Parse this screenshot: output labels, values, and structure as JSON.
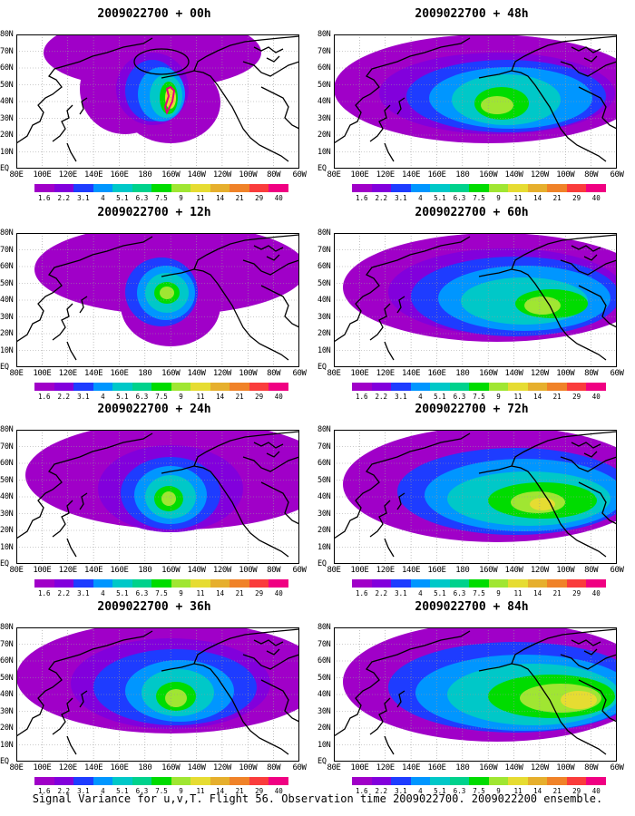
{
  "panels": [
    {
      "title": "2009022700 + 00h"
    },
    {
      "title": "2009022700 + 48h"
    },
    {
      "title": "2009022700 + 12h"
    },
    {
      "title": "2009022700 + 60h"
    },
    {
      "title": "2009022700 + 24h"
    },
    {
      "title": "2009022700 + 72h"
    },
    {
      "title": "2009022700 + 36h"
    },
    {
      "title": "2009022700 + 84h"
    }
  ],
  "lat_labels": [
    "80N",
    "70N",
    "60N",
    "50N",
    "40N",
    "30N",
    "20N",
    "10N",
    "EQ"
  ],
  "lon_labels": [
    "80E",
    "100E",
    "120E",
    "140E",
    "160E",
    "180",
    "160W",
    "140W",
    "120W",
    "100W",
    "80W",
    "60W"
  ],
  "colorbar": {
    "labels": [
      "1.6",
      "2.2",
      "3.1",
      "4",
      "5.1",
      "6.3",
      "7.5",
      "9",
      "11",
      "14",
      "21",
      "29",
      "40"
    ],
    "colors": [
      "#a000c8",
      "#8200dc",
      "#1e3cff",
      "#0096ff",
      "#00c8c8",
      "#00d28c",
      "#00dc00",
      "#a0e632",
      "#e6dc32",
      "#e6af2d",
      "#f08228",
      "#fa3c3c",
      "#f00082"
    ]
  },
  "footer": "Signal Variance for u,v,T. Flight 56. Observation time 2009022700. 2009022200 ensemble."
}
